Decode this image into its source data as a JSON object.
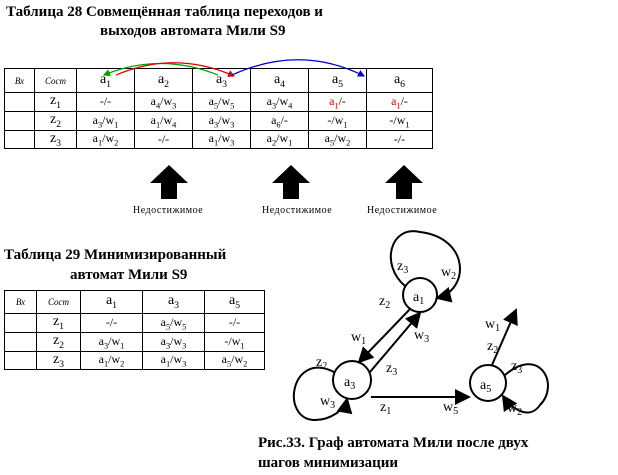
{
  "table28": {
    "title_line1": "Таблица 28 Совмещённая таблица переходов и",
    "title_line2": "выходов автомата Мили  S9",
    "headers": [
      "Вх",
      "Сост"
    ],
    "states": [
      "a1",
      "a2",
      "a3",
      "a4",
      "a5",
      "a6"
    ],
    "inputs": [
      "z1",
      "z2",
      "z3"
    ],
    "rows": [
      [
        "-/-",
        "a4/w3",
        "a5/w5",
        "a3/w4",
        "a1/-",
        "a1/-"
      ],
      [
        "a3/w1",
        "a1/w4",
        "a3/w3",
        "a6/-",
        "-/w1",
        "-/w1"
      ],
      [
        "a1/w2",
        "-/-",
        "a1/w3",
        "a2/w1",
        "a5/w2",
        "-/-"
      ]
    ],
    "notes": [
      "Недостижимое",
      "Недостижимое",
      "Недостижимое"
    ]
  },
  "table29": {
    "title_line1": "Таблица 29 Минимизированный",
    "title_line2": "автомат Мили S9",
    "headers": [
      "Вх",
      "Сост"
    ],
    "states": [
      "a1",
      "a3",
      "a5"
    ],
    "inputs": [
      "z1",
      "z2",
      "z3"
    ],
    "rows": [
      [
        "-/-",
        "a5/w5",
        "-/-"
      ],
      [
        "a3/w1",
        "a3/w3",
        "-/w1"
      ],
      [
        "a1/w2",
        "a1/w3",
        "a5/w2"
      ]
    ]
  },
  "graph": {
    "nodes": [
      "a1",
      "a3",
      "a5"
    ],
    "labels": [
      "z3",
      "w2",
      "z2",
      "w1",
      "w3",
      "z2",
      "z3",
      "w3",
      "z1",
      "w5",
      "w1",
      "z2",
      "z3",
      "w2"
    ]
  },
  "caption": {
    "line1": "Рис.33. Граф автомата Мили после двух",
    "line2": "шагов минимизации"
  }
}
